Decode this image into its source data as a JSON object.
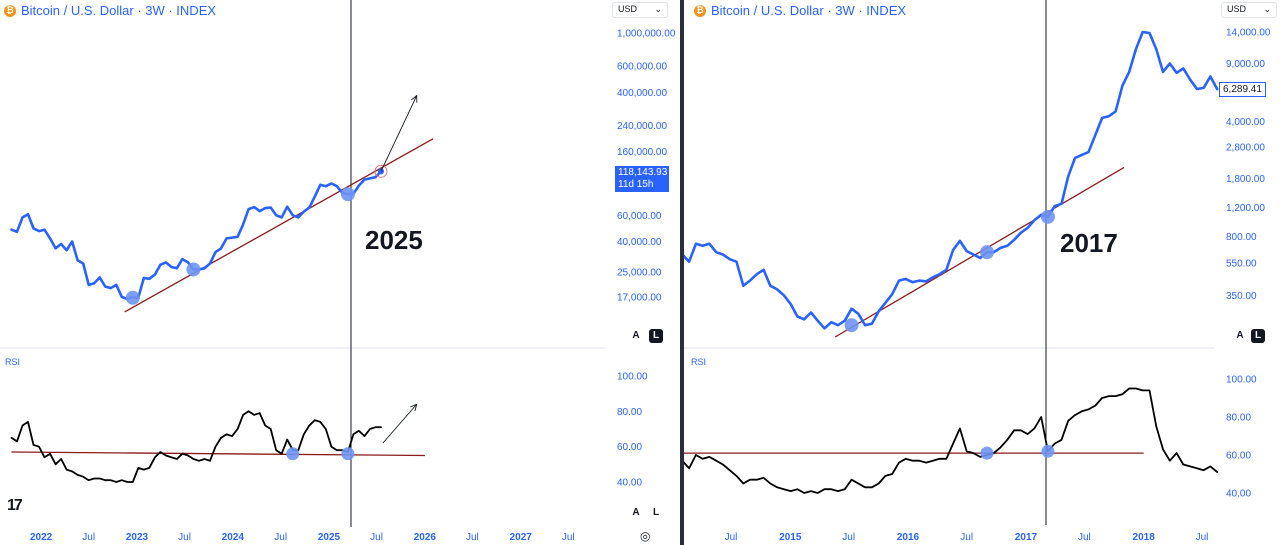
{
  "header": {
    "symbol_title": "Bitcoin / U.S. Dollar · 3W · INDEX",
    "currency": "USD",
    "rsi_label": "RSI",
    "scale_auto": "A",
    "scale_log": "L",
    "tv_logo": "17"
  },
  "colors": {
    "price_line": "#2962ff",
    "rsi_line": "#000000",
    "trendline": "#8b1a1a",
    "touch_marker": "#6f93f4",
    "axis_text": "#2962ff"
  },
  "chart_data": [
    {
      "type": "line",
      "panel": "left-price",
      "title": "Bitcoin / U.S. Dollar · 3W · INDEX",
      "annotation": "2025",
      "y_scale": "log",
      "y_tick_labels": [
        "1,000,000.00",
        "600,000.00",
        "400,000.00",
        "240,000.00",
        "160,000.00",
        "60,000.00",
        "40,000.00",
        "25,000.00",
        "17,000.00"
      ],
      "x_tick_labels": [
        "2022",
        "Jul",
        "2023",
        "Jul",
        "2024",
        "Jul",
        "2025",
        "Jul",
        "2026",
        "Jul",
        "2027",
        "Jul"
      ],
      "last_price_label": "118,143.93",
      "countdown_label": "11d 15h",
      "series": [
        {
          "x": [
            "2021-09-10",
            "2021-10-01",
            "2021-10-22",
            "2021-11-12",
            "2021-12-03",
            "2021-12-24",
            "2022-01-14",
            "2022-02-04",
            "2022-02-25",
            "2022-03-18",
            "2022-04-08",
            "2022-04-29",
            "2022-05-20",
            "2022-06-10",
            "2022-07-01",
            "2022-07-22",
            "2022-08-12",
            "2022-09-02",
            "2022-09-23",
            "2022-10-14",
            "2022-11-04",
            "2022-11-25",
            "2022-12-16",
            "2023-01-06",
            "2023-01-27",
            "2023-02-17",
            "2023-03-10",
            "2023-03-31",
            "2023-04-21",
            "2023-05-12",
            "2023-06-02",
            "2023-06-23",
            "2023-07-14",
            "2023-08-04",
            "2023-08-25",
            "2023-09-15",
            "2023-10-06",
            "2023-10-27",
            "2023-11-17",
            "2023-12-08",
            "2023-12-29",
            "2024-01-19",
            "2024-02-09",
            "2024-03-01",
            "2024-03-22",
            "2024-04-12",
            "2024-05-03",
            "2024-05-24",
            "2024-06-14",
            "2024-07-05",
            "2024-07-26",
            "2024-08-16",
            "2024-09-06",
            "2024-09-27",
            "2024-10-18",
            "2024-11-08",
            "2024-11-29",
            "2024-12-20",
            "2025-01-10",
            "2025-01-31",
            "2025-02-21",
            "2025-03-14",
            "2025-04-04",
            "2025-04-25",
            "2025-05-16",
            "2025-06-06",
            "2025-06-27",
            "2025-07-18"
          ],
          "values": [
            48000,
            46500,
            58000,
            61000,
            49000,
            47000,
            48000,
            42000,
            36000,
            38500,
            35000,
            40000,
            30000,
            28500,
            20500,
            21000,
            23000,
            20000,
            19500,
            20500,
            17000,
            16500,
            17000,
            16800,
            22800,
            22500,
            24000,
            28000,
            29000,
            27000,
            26500,
            30500,
            29000,
            26000,
            26000,
            26500,
            28500,
            34000,
            36000,
            42000,
            42500,
            43000,
            52000,
            66000,
            68000,
            64000,
            67000,
            67500,
            60000,
            58000,
            68500,
            60000,
            58000,
            63500,
            67500,
            80000,
            96000,
            94000,
            98000,
            94000,
            84500,
            83000,
            83500,
            95000,
            104000,
            106000,
            108000,
            118143.93
          ]
        }
      ],
      "trendline": {
        "from": [
          "2022-11-15",
          13500
        ],
        "to": [
          "2026-02-01",
          195000
        ]
      },
      "trendline_touches": [
        [
          "2022-12-16",
          16800
        ],
        [
          "2023-08-04",
          26000
        ],
        [
          "2025-03-14",
          83000
        ]
      ],
      "projection_arrow": {
        "from": [
          "2025-07-18",
          118143.93
        ],
        "to": [
          "2025-12-01",
          380000
        ]
      }
    },
    {
      "type": "line",
      "panel": "left-rsi",
      "title": "RSI",
      "y_tick_labels": [
        "100.00",
        "80.00",
        "60.00",
        "40.00"
      ],
      "series": [
        {
          "x": [
            "2021-09-10",
            "2021-10-01",
            "2021-10-22",
            "2021-11-12",
            "2021-12-03",
            "2021-12-24",
            "2022-01-14",
            "2022-02-04",
            "2022-02-25",
            "2022-03-18",
            "2022-04-08",
            "2022-04-29",
            "2022-05-20",
            "2022-06-10",
            "2022-07-01",
            "2022-07-22",
            "2022-08-12",
            "2022-09-02",
            "2022-09-23",
            "2022-10-14",
            "2022-11-04",
            "2022-11-25",
            "2022-12-16",
            "2023-01-06",
            "2023-01-27",
            "2023-02-17",
            "2023-03-10",
            "2023-03-31",
            "2023-04-21",
            "2023-05-12",
            "2023-06-02",
            "2023-06-23",
            "2023-07-14",
            "2023-08-04",
            "2023-08-25",
            "2023-09-15",
            "2023-10-06",
            "2023-10-27",
            "2023-11-17",
            "2023-12-08",
            "2023-12-29",
            "2024-01-19",
            "2024-02-09",
            "2024-03-01",
            "2024-03-22",
            "2024-04-12",
            "2024-05-03",
            "2024-05-24",
            "2024-06-14",
            "2024-07-05",
            "2024-07-26",
            "2024-08-16",
            "2024-09-06",
            "2024-09-27",
            "2024-10-18",
            "2024-11-08",
            "2024-11-29",
            "2024-12-20",
            "2025-01-10",
            "2025-01-31",
            "2025-02-21",
            "2025-03-14",
            "2025-04-04",
            "2025-04-25",
            "2025-05-16",
            "2025-06-06",
            "2025-06-27",
            "2025-07-18"
          ],
          "values": [
            65,
            63,
            72,
            74,
            61,
            60,
            54,
            56,
            50,
            53,
            47,
            46,
            44,
            43,
            41,
            42,
            42,
            41,
            41,
            40,
            41,
            40,
            40,
            48,
            47,
            48,
            54,
            57,
            55,
            54,
            53,
            56,
            55,
            53,
            52,
            53,
            52,
            60,
            65,
            67,
            66,
            70,
            78,
            80,
            78,
            79,
            72,
            70,
            58,
            56,
            64,
            58,
            58,
            67,
            72,
            75,
            74,
            70,
            60,
            58,
            58,
            57,
            67,
            69,
            66,
            70,
            71,
            71
          ]
        }
      ],
      "trendline": {
        "from": [
          "2021-09-10",
          57
        ],
        "to": [
          "2026-01-01",
          55
        ]
      },
      "trendline_touches": [
        [
          "2024-08-16",
          56
        ],
        [
          "2025-03-14",
          56
        ]
      ],
      "projection_arrow": {
        "from": [
          "2025-07-25",
          62
        ],
        "to": [
          "2025-12-01",
          84
        ]
      }
    },
    {
      "type": "line",
      "panel": "right-price",
      "title": "Bitcoin / U.S. Dollar · 3W · INDEX",
      "annotation": "2017",
      "y_scale": "log",
      "y_tick_labels": [
        "14,000.00",
        "9,000.00",
        "4,000.00",
        "2,800.00",
        "1,800.00",
        "1,200.00",
        "800.00",
        "550.00",
        "350.00"
      ],
      "x_tick_labels": [
        "Jul",
        "2015",
        "Jul",
        "2016",
        "Jul",
        "2017",
        "Jul",
        "2018",
        "Jul"
      ],
      "last_price_label": "6,289.41",
      "series": [
        {
          "x": [
            "2013-12-20",
            "2014-01-10",
            "2014-01-31",
            "2014-02-21",
            "2014-03-14",
            "2014-04-04",
            "2014-04-25",
            "2014-05-16",
            "2014-06-06",
            "2014-06-27",
            "2014-07-18",
            "2014-08-08",
            "2014-08-29",
            "2014-09-19",
            "2014-10-10",
            "2014-10-31",
            "2014-11-21",
            "2014-12-12",
            "2015-01-02",
            "2015-01-23",
            "2015-02-13",
            "2015-03-06",
            "2015-03-27",
            "2015-04-17",
            "2015-05-08",
            "2015-05-29",
            "2015-06-19",
            "2015-07-10",
            "2015-07-31",
            "2015-08-21",
            "2015-09-11",
            "2015-10-02",
            "2015-10-23",
            "2015-11-13",
            "2015-12-04",
            "2015-12-25",
            "2016-01-15",
            "2016-02-05",
            "2016-02-26",
            "2016-03-18",
            "2016-04-08",
            "2016-04-29",
            "2016-05-20",
            "2016-06-10",
            "2016-07-01",
            "2016-07-22",
            "2016-08-12",
            "2016-09-02",
            "2016-09-23",
            "2016-10-14",
            "2016-11-04",
            "2016-11-25",
            "2016-12-16",
            "2017-01-06",
            "2017-01-27",
            "2017-02-17",
            "2017-03-10",
            "2017-03-31",
            "2017-04-21",
            "2017-05-12",
            "2017-06-02",
            "2017-06-23",
            "2017-07-14",
            "2017-08-04",
            "2017-08-25",
            "2017-09-15",
            "2017-10-06",
            "2017-10-27",
            "2017-11-17",
            "2017-12-08",
            "2017-12-29",
            "2018-01-19",
            "2018-02-09",
            "2018-03-02",
            "2018-03-23",
            "2018-04-13",
            "2018-05-04",
            "2018-05-25",
            "2018-06-15",
            "2018-07-06",
            "2018-07-27",
            "2018-08-17"
          ],
          "values": [
            700,
            550,
            620,
            560,
            720,
            700,
            720,
            640,
            620,
            580,
            560,
            400,
            430,
            470,
            500,
            400,
            380,
            350,
            310,
            260,
            250,
            275,
            245,
            220,
            240,
            230,
            245,
            290,
            270,
            230,
            235,
            280,
            315,
            355,
            430,
            440,
            420,
            430,
            425,
            450,
            470,
            500,
            660,
            750,
            650,
            620,
            590,
            640,
            640,
            680,
            700,
            760,
            840,
            900,
            1000,
            1080,
            1050,
            1220,
            1260,
            1850,
            2400,
            2500,
            2600,
            3300,
            4200,
            4300,
            4600,
            6600,
            8000,
            11000,
            14000,
            13800,
            11000,
            8000,
            9000,
            7900,
            8400,
            7200,
            6300,
            6400,
            7500,
            6289.41
          ]
        }
      ],
      "trendline": {
        "from": [
          "2015-05-20",
          195
        ],
        "to": [
          "2017-11-01",
          2100
        ]
      },
      "trendline_touches": [
        [
          "2015-07-10",
          230
        ],
        [
          "2016-09-02",
          640
        ],
        [
          "2017-03-10",
          1050
        ]
      ]
    },
    {
      "type": "line",
      "panel": "right-rsi",
      "title": "RSI",
      "y_tick_labels": [
        "100.00",
        "80.00",
        "60.00",
        "40.00"
      ],
      "series": [
        {
          "x": [
            "2013-12-20",
            "2014-01-10",
            "2014-01-31",
            "2014-02-21",
            "2014-03-14",
            "2014-04-04",
            "2014-04-25",
            "2014-05-16",
            "2014-06-06",
            "2014-06-27",
            "2014-07-18",
            "2014-08-08",
            "2014-08-29",
            "2014-09-19",
            "2014-10-10",
            "2014-10-31",
            "2014-11-21",
            "2014-12-12",
            "2015-01-02",
            "2015-01-23",
            "2015-02-13",
            "2015-03-06",
            "2015-03-27",
            "2015-04-17",
            "2015-05-08",
            "2015-05-29",
            "2015-06-19",
            "2015-07-10",
            "2015-07-31",
            "2015-08-21",
            "2015-09-11",
            "2015-10-02",
            "2015-10-23",
            "2015-11-13",
            "2015-12-04",
            "2015-12-25",
            "2016-01-15",
            "2016-02-05",
            "2016-02-26",
            "2016-03-18",
            "2016-04-08",
            "2016-04-29",
            "2016-05-20",
            "2016-06-10",
            "2016-07-01",
            "2016-07-22",
            "2016-08-12",
            "2016-09-02",
            "2016-09-23",
            "2016-10-14",
            "2016-11-04",
            "2016-11-25",
            "2016-12-16",
            "2017-01-06",
            "2017-01-27",
            "2017-02-17",
            "2017-03-10",
            "2017-03-31",
            "2017-04-21",
            "2017-05-12",
            "2017-06-02",
            "2017-06-23",
            "2017-07-14",
            "2017-08-04",
            "2017-08-25",
            "2017-09-15",
            "2017-10-06",
            "2017-10-27",
            "2017-11-17",
            "2017-12-08",
            "2017-12-29",
            "2018-01-19",
            "2018-02-09",
            "2018-03-02",
            "2018-03-23",
            "2018-04-13",
            "2018-05-04",
            "2018-05-25",
            "2018-06-15",
            "2018-07-06",
            "2018-07-27",
            "2018-08-17"
          ],
          "values": [
            64,
            55,
            57,
            53,
            60,
            58,
            59,
            57,
            55,
            52,
            49,
            45,
            47,
            47,
            48,
            45,
            43,
            42,
            41,
            42,
            40,
            41,
            40,
            42,
            42,
            41,
            42,
            47,
            45,
            43,
            43,
            45,
            49,
            50,
            56,
            58,
            57,
            57,
            56,
            57,
            58,
            58,
            66,
            74,
            62,
            61,
            59,
            60,
            61,
            64,
            68,
            73,
            73,
            71,
            74,
            80,
            62,
            66,
            68,
            78,
            81,
            83,
            84,
            86,
            90,
            91,
            91,
            92,
            95,
            95,
            94,
            94,
            75,
            63,
            57,
            61,
            55,
            54,
            53,
            52,
            54,
            51
          ]
        }
      ],
      "trendline": {
        "from": [
          "2013-12-20",
          61
        ],
        "to": [
          "2018-01-01",
          61
        ]
      },
      "trendline_touches": [
        [
          "2016-09-02",
          61
        ],
        [
          "2017-03-10",
          62
        ]
      ]
    }
  ]
}
